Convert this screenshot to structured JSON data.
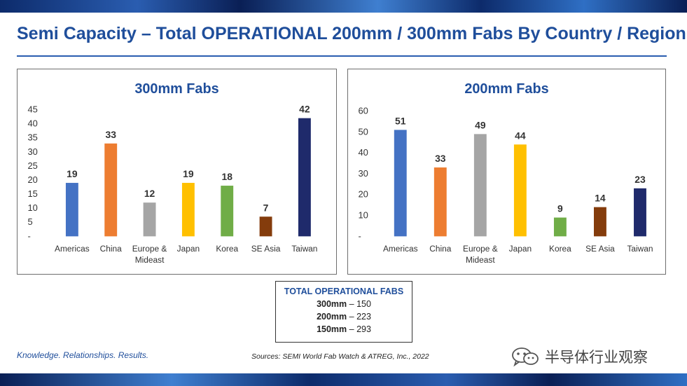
{
  "title": "Semi Capacity – Total OPERATIONAL 200mm / 300mm Fabs By Country / Region",
  "colors": {
    "accent": "#1f4e9b",
    "panel_border": "#6e6e6e"
  },
  "chart_data": [
    {
      "type": "bar",
      "title": "300mm Fabs",
      "categories": [
        "Americas",
        "China",
        "Europe & Mideast",
        "Japan",
        "Korea",
        "SE Asia",
        "Taiwan"
      ],
      "category_lines": [
        [
          "Americas"
        ],
        [
          "China"
        ],
        [
          "Europe &",
          "Mideast"
        ],
        [
          "Japan"
        ],
        [
          "Korea"
        ],
        [
          "SE Asia"
        ],
        [
          "Taiwan"
        ]
      ],
      "values": [
        19,
        33,
        12,
        19,
        18,
        7,
        42
      ],
      "colors": [
        "#4472c4",
        "#ed7d31",
        "#a5a5a5",
        "#ffc000",
        "#70ad47",
        "#843c0c",
        "#1f2a6b"
      ],
      "ylim": [
        0,
        45
      ],
      "yticks": [
        "-",
        "5",
        "10",
        "15",
        "20",
        "25",
        "30",
        "35",
        "40",
        "45"
      ],
      "grid": false,
      "xlabel": "",
      "ylabel": ""
    },
    {
      "type": "bar",
      "title": "200mm Fabs",
      "categories": [
        "Americas",
        "China",
        "Europe & Mideast",
        "Japan",
        "Korea",
        "SE Asia",
        "Taiwan"
      ],
      "category_lines": [
        [
          "Americas"
        ],
        [
          "China"
        ],
        [
          "Europe &",
          "Mideast"
        ],
        [
          "Japan"
        ],
        [
          "Korea"
        ],
        [
          "SE Asia"
        ],
        [
          "Taiwan"
        ]
      ],
      "values": [
        51,
        33,
        49,
        44,
        9,
        14,
        23
      ],
      "colors": [
        "#4472c4",
        "#ed7d31",
        "#a5a5a5",
        "#ffc000",
        "#70ad47",
        "#843c0c",
        "#1f2a6b"
      ],
      "ylim": [
        0,
        60
      ],
      "yticks": [
        "-",
        "10",
        "20",
        "30",
        "40",
        "50",
        "60"
      ],
      "grid": false,
      "xlabel": "",
      "ylabel": ""
    }
  ],
  "totals": {
    "heading": "TOTAL OPERATIONAL FABS",
    "rows": [
      {
        "label": "300mm",
        "value": "– 150"
      },
      {
        "label": "200mm",
        "value": "– 223"
      },
      {
        "label": "150mm",
        "value": "– 293"
      }
    ]
  },
  "footer": {
    "tagline": "Knowledge. Relationships. Results.",
    "sources": "Sources: SEMI World Fab Watch & ATREG, Inc., 2022"
  },
  "watermark": {
    "text": "半导体行业观察",
    "icon": "wechat-icon"
  }
}
